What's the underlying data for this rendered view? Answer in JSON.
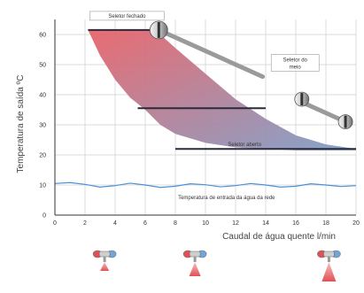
{
  "chart_data": {
    "type": "area",
    "title": "",
    "xlabel": "Caudal de água quente l/min",
    "ylabel": "Temperatura de saída ºC",
    "xlim": [
      0,
      20
    ],
    "ylim": [
      0,
      65
    ],
    "x_ticks": [
      "0",
      "2",
      "4",
      "6",
      "8",
      "10",
      "12",
      "14",
      "16",
      "18",
      "20"
    ],
    "y_ticks": [
      "0",
      "10",
      "20",
      "30",
      "40",
      "50",
      "60"
    ],
    "grid": true,
    "band": {
      "upper": [
        [
          2.2,
          61.5
        ],
        [
          6.5,
          61.5
        ],
        [
          7.0,
          60.0
        ],
        [
          8.0,
          55.5
        ],
        [
          10.0,
          47.0
        ],
        [
          12.0,
          38.5
        ],
        [
          14.0,
          32.0
        ],
        [
          16.0,
          26.5
        ],
        [
          18.0,
          23.5
        ],
        [
          20.0,
          22.0
        ]
      ],
      "lower": [
        [
          2.2,
          61.5
        ],
        [
          3.0,
          53.0
        ],
        [
          4.0,
          45.0
        ],
        [
          5.0,
          39.0
        ],
        [
          6.0,
          35.0
        ],
        [
          7.0,
          30.0
        ],
        [
          8.0,
          27.0
        ],
        [
          10.0,
          24.0
        ],
        [
          12.0,
          22.5
        ],
        [
          16.0,
          21.5
        ],
        [
          20.0,
          21.5
        ]
      ],
      "color_high": "#e8646a",
      "color_low": "#7f9fc8"
    },
    "levels": [
      {
        "name": "Seletor fechado",
        "y": 61.5,
        "x_from": 2.2,
        "x_to": 6.5
      },
      {
        "name": "Seletor do meio",
        "y": 35.5,
        "x_from": 5.5,
        "x_to": 14.0
      },
      {
        "name": "Seletor aberto",
        "y": 22.0,
        "x_from": 8.0,
        "x_to": 20.0
      }
    ],
    "cold_water": {
      "name": "Temperatura de entrada da água da rede",
      "x": [
        0,
        1,
        2,
        3,
        4,
        5,
        6,
        7,
        8,
        9,
        10,
        11,
        12,
        13,
        14,
        15,
        16,
        17,
        18,
        19,
        20
      ],
      "y": [
        10.5,
        10.8,
        10.2,
        9.3,
        9.8,
        10.6,
        10.0,
        9.2,
        9.6,
        10.4,
        10.1,
        9.4,
        9.8,
        10.5,
        10.0,
        9.3,
        9.6,
        10.4,
        10.0,
        9.5,
        9.8
      ],
      "color": "#4a90d8"
    },
    "annotations": [
      "Seletor fechado",
      "Seletor do meio",
      "Seletor aberto",
      "Temperatura de entrada da água da rede"
    ],
    "selector_icons": [
      {
        "name": "closed",
        "at_level": 0,
        "flow_x": 2.2
      },
      {
        "name": "middle",
        "at_level": 1,
        "flow_x": 8.0
      },
      {
        "name": "open",
        "at_level": 2,
        "flow_x": 16.5
      }
    ]
  }
}
